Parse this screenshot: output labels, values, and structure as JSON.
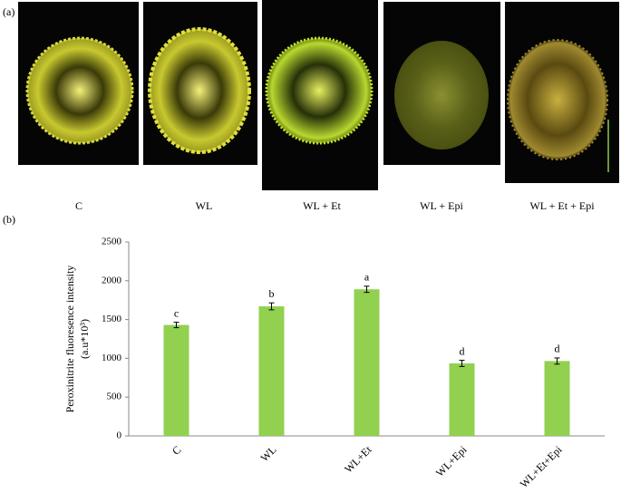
{
  "panel_a": {
    "label": "(a)",
    "captions": [
      "C",
      "WL",
      "WL + Et",
      "WL + Epi",
      "WL + Et + Epi"
    ]
  },
  "panel_b_label": "(b)",
  "chart_data": {
    "type": "bar",
    "ylabel": [
      "Peroxinitrite fluoresence intensity",
      "(a.u*10³)"
    ],
    "categories": [
      "C",
      "WL",
      "WL+Et",
      "WL+Epi",
      "WL+Et+Epi"
    ],
    "values": [
      1430,
      1670,
      1890,
      935,
      965
    ],
    "errors": [
      35,
      45,
      40,
      40,
      40
    ],
    "annotations": [
      "c",
      "b",
      "a",
      "d",
      "d"
    ],
    "color": "#92d050",
    "ylim": [
      0,
      2500
    ],
    "yticks": [
      0,
      500,
      1000,
      1500,
      2000,
      2500
    ]
  }
}
